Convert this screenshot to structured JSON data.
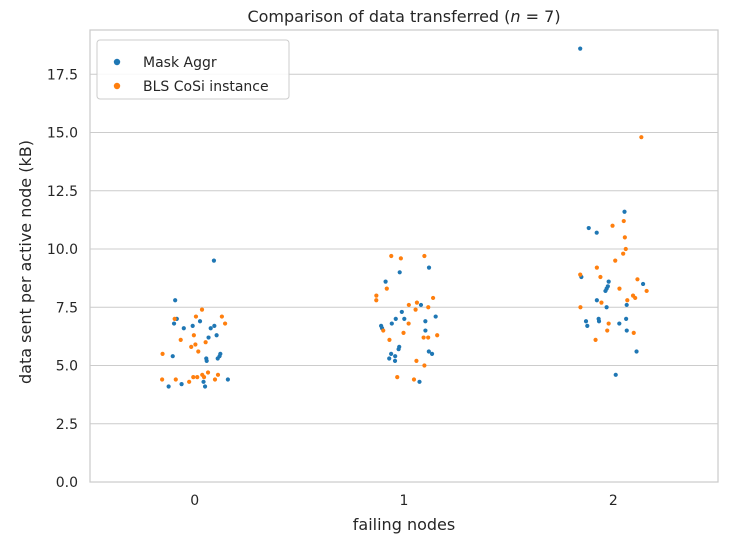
{
  "chart_data": {
    "type": "scatter",
    "title_prefix": "Comparison of data transferred (",
    "title_var": "n",
    "title_suffix": " = 7)",
    "xlabel": "failing nodes",
    "ylabel": "data sent per active node (kB)",
    "categories": [
      "0",
      "1",
      "2"
    ],
    "yticks": [
      "0.0",
      "2.5",
      "5.0",
      "7.5",
      "10.0",
      "12.5",
      "15.0",
      "17.5"
    ],
    "ylim": [
      0,
      19.4
    ],
    "grid": "horizontal",
    "legend_position": "top-left",
    "series": [
      {
        "name": "Mask Aggr",
        "color": "#1f77b4",
        "values": [
          [
            4.1,
            4.2,
            4.3,
            4.4,
            5.2,
            5.3,
            5.4,
            5.5,
            6.2,
            6.3,
            6.6,
            6.6,
            6.7,
            6.8,
            6.9,
            7.0,
            7.8,
            9.5,
            5.4,
            5.3,
            4.1,
            6.7
          ],
          [
            4.3,
            5.2,
            5.3,
            5.4,
            5.5,
            5.6,
            5.7,
            5.8,
            6.5,
            6.6,
            6.7,
            6.8,
            7.0,
            7.0,
            7.1,
            7.3,
            7.6,
            8.6,
            9.0,
            9.2,
            6.9,
            5.5
          ],
          [
            4.6,
            5.6,
            6.5,
            6.7,
            6.8,
            6.9,
            7.0,
            7.5,
            7.6,
            7.8,
            8.2,
            8.3,
            8.4,
            8.5,
            8.6,
            8.8,
            10.7,
            10.9,
            11.6,
            18.6,
            6.9,
            7.0
          ]
        ]
      },
      {
        "name": "BLS CoSi instance",
        "color": "#ff7f0e",
        "values": [
          [
            4.3,
            4.4,
            4.4,
            4.5,
            4.5,
            4.6,
            4.6,
            4.7,
            5.5,
            5.6,
            5.8,
            5.9,
            6.0,
            6.1,
            6.3,
            6.8,
            7.0,
            7.1,
            7.1,
            7.4,
            4.4,
            4.5
          ],
          [
            4.4,
            4.5,
            5.0,
            5.2,
            6.1,
            6.2,
            6.3,
            6.4,
            6.5,
            6.8,
            7.4,
            7.5,
            7.6,
            7.7,
            7.8,
            7.9,
            8.0,
            8.3,
            9.6,
            9.7,
            9.7,
            6.2
          ],
          [
            6.1,
            6.4,
            6.5,
            6.8,
            7.5,
            7.7,
            7.8,
            7.9,
            8.0,
            8.2,
            8.3,
            8.7,
            8.8,
            8.9,
            9.2,
            9.5,
            9.8,
            10.0,
            10.5,
            11.0,
            11.2,
            14.8
          ]
        ]
      }
    ]
  }
}
